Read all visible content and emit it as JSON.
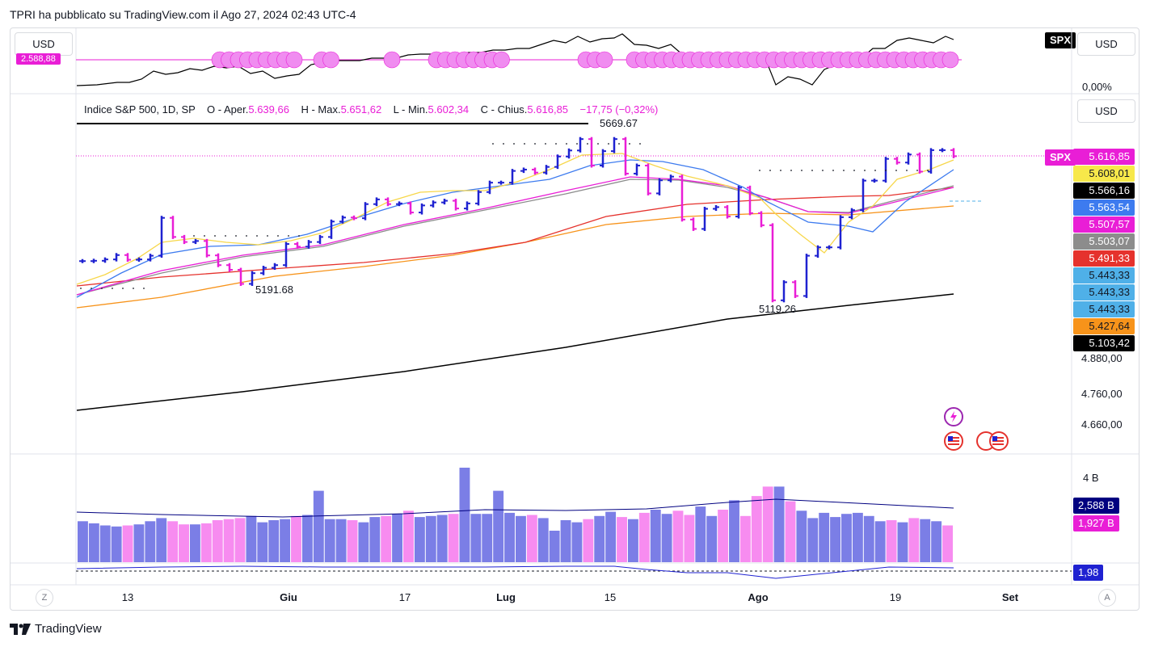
{
  "header": {
    "text": "TPRI ha pubblicato su TradingView.com il Ago 27, 2024 02:43 UTC-4"
  },
  "colors": {
    "bull": "#1f22d1",
    "bear": "#e91ed6",
    "ema_yellow": "#f7d74a",
    "ema_blue": "#3d7bef",
    "ema_pink": "#e91ed6",
    "ema_grey": "#8c8c8c",
    "ema_red": "#e5322d",
    "ema_orange": "#f7931a",
    "ema_black": "#000000",
    "vol_up": "#7b7ee6",
    "vol_down": "#f78cf0"
  },
  "top_pane": {
    "currency_left": "USD",
    "currency_right": "USD",
    "symbol_badge": "SPX",
    "value_label": "0,00%",
    "left_badge": "2.588,88"
  },
  "main_pane": {
    "currency": "USD",
    "legend": {
      "title": "Indice S&P 500, 1D, SP",
      "open_label": "O - Aper.",
      "open_value": "5.639,66",
      "high_label": "H - Max.",
      "high_value": "5.651,62",
      "low_label": "L - Min.",
      "low_value": "5.602,34",
      "close_label": "C - Chius.",
      "close_value": "5.616,85",
      "change": "−17,75 (−0,32%)"
    },
    "annotations": {
      "high": "5669.67",
      "low1": "5191.68",
      "low2": "5119.26"
    },
    "symbol_badge": "SPX",
    "price_badges": [
      {
        "value": "5.616,85",
        "bg": "#e91ed6",
        "fg": "#ffffff"
      },
      {
        "value": "5.608,01",
        "bg": "#f7e84a",
        "fg": "#131722"
      },
      {
        "value": "5.566,16",
        "bg": "#000000",
        "fg": "#ffffff"
      },
      {
        "value": "5.563,54",
        "bg": "#3d7bef",
        "fg": "#ffffff"
      },
      {
        "value": "5.507,57",
        "bg": "#e91ed6",
        "fg": "#ffffff"
      },
      {
        "value": "5.503,07",
        "bg": "#8c8c8c",
        "fg": "#ffffff"
      },
      {
        "value": "5.491,33",
        "bg": "#e5322d",
        "fg": "#ffffff"
      },
      {
        "value": "5.443,33",
        "bg": "#4fb0e8",
        "fg": "#131722"
      },
      {
        "value": "5.443,33",
        "bg": "#4fb0e8",
        "fg": "#131722"
      },
      {
        "value": "5.443,33",
        "bg": "#4fb0e8",
        "fg": "#131722"
      },
      {
        "value": "5.427,64",
        "bg": "#f7931a",
        "fg": "#131722"
      },
      {
        "value": "5.103,42",
        "bg": "#000000",
        "fg": "#ffffff"
      }
    ],
    "axis_ticks": [
      "4.880,00",
      "4.760,00",
      "4.660,00"
    ]
  },
  "volume_pane": {
    "axis_label": "4 B",
    "badges": [
      {
        "value": "2,588 B",
        "bg": "#000080",
        "fg": "#ffffff"
      },
      {
        "value": "1,927 B",
        "bg": "#e91ed6",
        "fg": "#ffffff"
      }
    ]
  },
  "osc_pane": {
    "badge": {
      "value": "1,98",
      "bg": "#1f22d1",
      "fg": "#ffffff"
    }
  },
  "time_axis": {
    "labels": [
      "13",
      "Giu",
      "17",
      "Lug",
      "15",
      "Ago",
      "19",
      "Set"
    ],
    "left_btn": "Z",
    "right_btn": "A"
  },
  "footer": {
    "logo_text": "TradingView"
  },
  "chart_data": {
    "type": "bar",
    "title": "Indice S&P 500, 1D, SP",
    "x_labels": [
      "13",
      "Giu",
      "17",
      "Lug",
      "15",
      "Ago",
      "19",
      "Set"
    ],
    "ohlc_close": [
      5303,
      5304,
      5308,
      5321,
      5307,
      5308,
      5319,
      5432,
      5375,
      5360,
      5363,
      5320,
      5291,
      5277,
      5235,
      5267,
      5283,
      5291,
      5354,
      5346,
      5360,
      5375,
      5421,
      5433,
      5431,
      5473,
      5487,
      5473,
      5475,
      5448,
      5469,
      5478,
      5483,
      5460,
      5475,
      5509,
      5537,
      5537,
      5572,
      5576,
      5567,
      5584,
      5615,
      5633,
      5667,
      5588,
      5631,
      5667,
      5564,
      5588,
      5505,
      5544,
      5555,
      5427,
      5399,
      5459,
      5464,
      5436,
      5522,
      5446,
      5410,
      5186,
      5240,
      5199,
      5319,
      5344,
      5344,
      5434,
      5455,
      5543,
      5543,
      5608,
      5597,
      5621,
      5570,
      5634,
      5634,
      5616
    ],
    "volume_billions": [
      3.9,
      3.7,
      3.5,
      3.4,
      3.5,
      3.6,
      3.9,
      4.2,
      3.9,
      3.6,
      3.6,
      3.7,
      4.0,
      4.1,
      4.2,
      4.4,
      3.8,
      4.0,
      4.1,
      4.4,
      4.5,
      6.8,
      4.1,
      4.1,
      4.0,
      3.8,
      4.3,
      4.4,
      4.6,
      4.9,
      4.3,
      4.4,
      4.5,
      4.6,
      9.0,
      4.6,
      4.6,
      6.8,
      4.7,
      4.4,
      4.5,
      4.2,
      3.0,
      4.0,
      3.8,
      4.1,
      4.4,
      4.8,
      4.3,
      4.1,
      4.7,
      5.0,
      4.6,
      4.9,
      4.5,
      5.3,
      4.4,
      5.0,
      5.9,
      4.4,
      6.3,
      7.2,
      7.2,
      5.8,
      4.9,
      4.2,
      4.7,
      4.3,
      4.6,
      4.7,
      4.4,
      3.9,
      4.0,
      3.8,
      4.2,
      4.1,
      3.9,
      3.5
    ],
    "volume_ma_billions": 4.5,
    "annotations": {
      "high": 5669.67,
      "low1": 5191.68,
      "low2": 5119.26
    },
    "last_close": 5616.85,
    "change": -17.75,
    "change_pct": -0.32
  }
}
